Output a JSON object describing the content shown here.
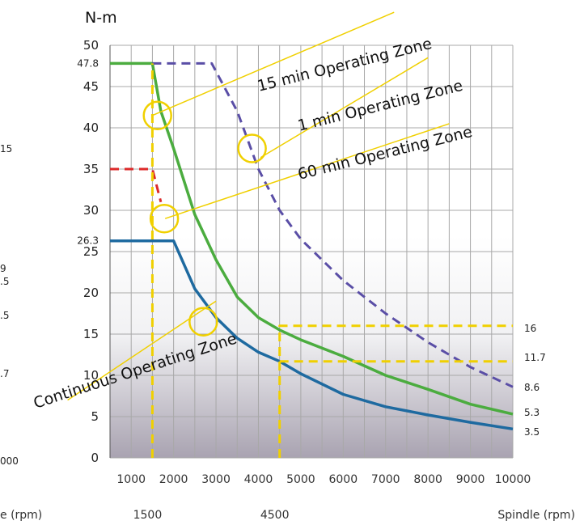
{
  "chart_data": {
    "type": "line",
    "ylabel": "N-m",
    "xlabel": "Spindle (rpm)",
    "xlabel_left_partial": "e (rpm)",
    "left_edge_fragments": [
      "15",
      "9",
      ".5",
      ".5",
      ".7",
      "000"
    ],
    "xlim": [
      500,
      10000
    ],
    "ylim": [
      0,
      50
    ],
    "y_ticks": [
      0,
      5,
      10,
      15,
      20,
      25,
      30,
      35,
      40,
      45,
      50
    ],
    "y_tick_labels": [
      "0",
      "5",
      "10",
      "15",
      "20",
      "25",
      "30",
      "35",
      "40",
      "45",
      "50"
    ],
    "y_special_labels": [
      "47.8",
      "26.3"
    ],
    "x_ticks": [
      1000,
      2000,
      3000,
      4000,
      5000,
      6000,
      7000,
      8000,
      9000,
      10000
    ],
    "x_tick_labels": [
      "1000",
      "2000",
      "3000",
      "4000",
      "5000",
      "6000",
      "7000",
      "8000",
      "9000",
      "10000"
    ],
    "x_secondary_labels": [
      "1500",
      "4500"
    ],
    "grid": true,
    "zones": [
      "15 min Operating Zone",
      "1 min Operating Zone",
      "60 min Operating Zone",
      "Continuous Operating Zone"
    ],
    "right_labels": [
      "16",
      "11.7",
      "8.6",
      "5.3",
      "3.5"
    ],
    "series": [
      {
        "color": "#4bac3f",
        "style": "solid",
        "x": [
          500,
          1500,
          1700,
          2000,
          2500,
          3000,
          3500,
          4000,
          4500,
          5000,
          6000,
          7000,
          8000,
          9000,
          10000
        ],
        "y": [
          47.8,
          47.8,
          42,
          37.5,
          29.5,
          24,
          19.5,
          17,
          15.5,
          14.3,
          12.3,
          10,
          8.3,
          6.5,
          5.3
        ]
      },
      {
        "color": "#1e6aa0",
        "style": "solid",
        "x": [
          500,
          1500,
          2000,
          2500,
          3000,
          3500,
          4000,
          4500,
          5000,
          6000,
          7000,
          8000,
          9000,
          10000
        ],
        "y": [
          26.3,
          26.3,
          26.3,
          20.5,
          17,
          14.5,
          12.8,
          11.7,
          10.2,
          7.7,
          6.2,
          5.2,
          4.3,
          3.5
        ]
      },
      {
        "color": "#5a4ea6",
        "style": "dashed",
        "x": [
          1500,
          2900,
          3500,
          4000,
          4500,
          5000,
          6000,
          7000,
          8000,
          9000,
          10000
        ],
        "y": [
          47.8,
          47.8,
          42,
          35,
          30,
          26.5,
          21.5,
          17.5,
          14,
          11,
          8.6
        ]
      },
      {
        "color": "#dd2a2a",
        "style": "dashed",
        "x": [
          500,
          1500,
          1700
        ],
        "y": [
          35,
          35,
          31
        ]
      },
      {
        "color": "#f0d000",
        "style": "dashed",
        "x": [
          1500,
          1500
        ],
        "y": [
          0,
          47.8
        ]
      },
      {
        "color": "#f0d000",
        "style": "dashed",
        "x": [
          4500,
          4500,
          10000
        ],
        "y": [
          0,
          16,
          16
        ]
      },
      {
        "color": "#f0d000",
        "style": "dashed",
        "x": [
          4500,
          10000
        ],
        "y": [
          11.7,
          11.7
        ]
      }
    ]
  }
}
